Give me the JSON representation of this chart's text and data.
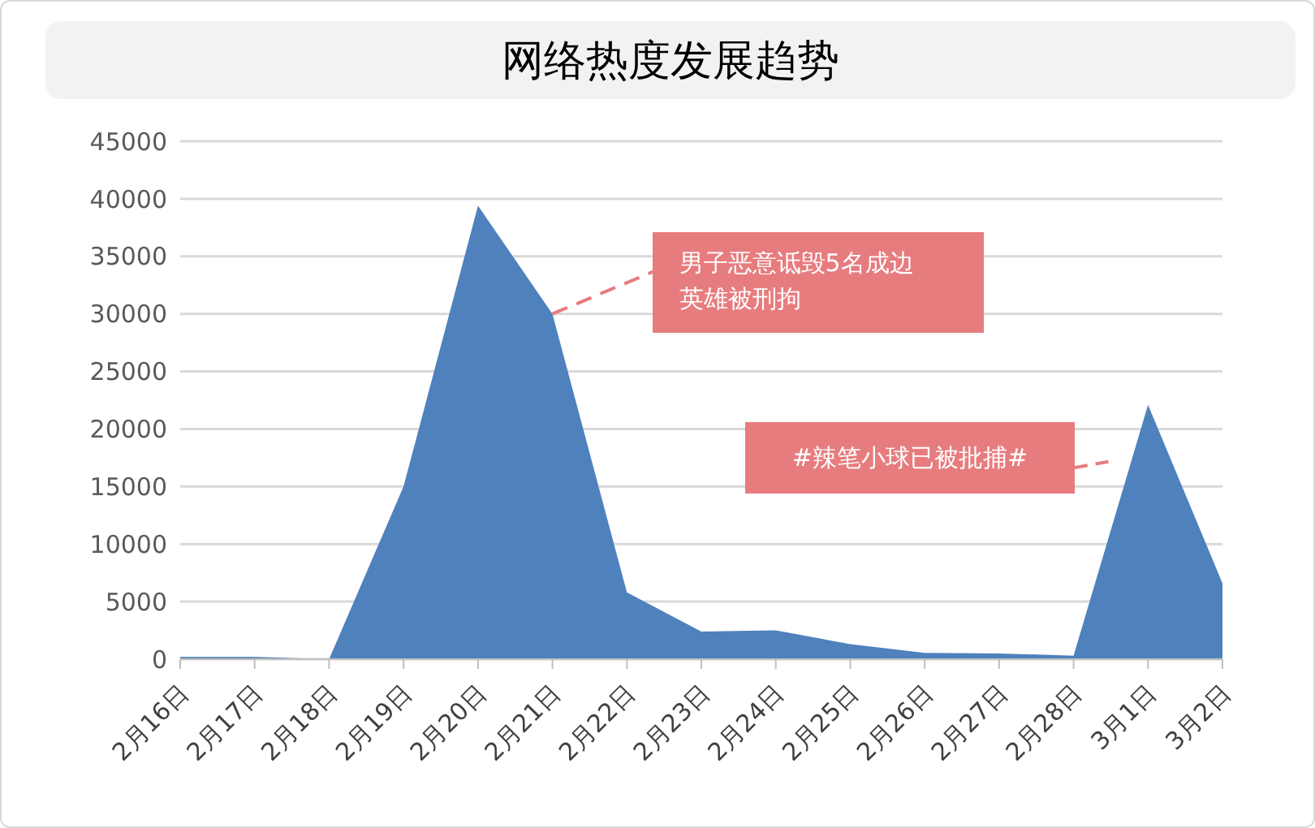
{
  "chart_data": {
    "type": "area",
    "title": "网络热度发展趋势",
    "categories": [
      "2月16日",
      "2月17日",
      "2月18日",
      "2月19日",
      "2月20日",
      "2月21日",
      "2月22日",
      "2月23日",
      "2月24日",
      "2月25日",
      "2月26日",
      "2月27日",
      "2月28日",
      "3月1日",
      "3月2日"
    ],
    "values": [
      200,
      200,
      0,
      15000,
      39400,
      30000,
      5800,
      2400,
      2500,
      1300,
      550,
      500,
      300,
      22100,
      6600
    ],
    "color": "#4f81bd",
    "ylim": [
      0,
      45000
    ],
    "yticks": [
      0,
      5000,
      10000,
      15000,
      20000,
      25000,
      30000,
      35000,
      40000,
      45000
    ],
    "grid": "y",
    "legend": false,
    "annotations": [
      {
        "text": "男子恶意诋毁5名成边英雄被刑拘",
        "x": "2月21日",
        "y": 30000
      },
      "#辣笔小球已被批捕#"
    ]
  }
}
